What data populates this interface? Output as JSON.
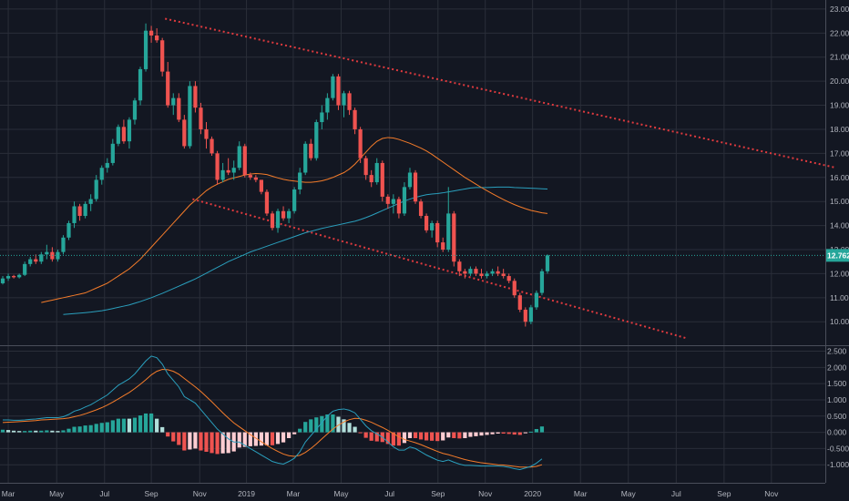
{
  "chart_data": [
    {
      "type": "candlestick",
      "panel": "price",
      "x_axis": {
        "tick_labels": [
          "Mar",
          "May",
          "Jul",
          "Sep",
          "Nov",
          "2019",
          "Mar",
          "May",
          "Jul",
          "Sep",
          "Nov",
          "2020",
          "Mar",
          "May",
          "Jul",
          "Sep",
          "Nov"
        ],
        "tick_weeks": [
          1.5,
          10.3,
          19.0,
          27.5,
          36.3,
          44.8,
          53.3,
          62.0,
          70.8,
          79.6,
          88.2,
          96.8,
          105.5,
          114.2,
          122.9,
          131.6,
          140.2
        ],
        "range_weeks": [
          0,
          150
        ]
      },
      "y_axis": {
        "tick_labels": [
          "23.000",
          "22.000",
          "21.000",
          "20.000",
          "19.000",
          "18.000",
          "17.000",
          "16.000",
          "15.000",
          "14.000",
          "13.000",
          "12.000",
          "11.000",
          "10.000"
        ],
        "range": [
          9.1,
          23.3
        ]
      },
      "last_price": {
        "label": "12.762",
        "value": 12.76,
        "color": "#26a69a"
      },
      "colors": {
        "up": "#26a69a",
        "down": "#ef5350",
        "ma_fast": "#f57c2a",
        "ma_slow": "#2a9fbd",
        "trendline": "#e03a3e"
      },
      "candles_ohlc": [
        [
          11.6,
          11.9,
          11.55,
          11.8
        ],
        [
          11.8,
          12.0,
          11.7,
          11.9
        ],
        [
          11.9,
          11.95,
          11.8,
          11.85
        ],
        [
          11.85,
          12.0,
          11.8,
          11.95
        ],
        [
          11.95,
          12.5,
          11.9,
          12.4
        ],
        [
          12.4,
          12.7,
          12.3,
          12.6
        ],
        [
          12.6,
          12.8,
          12.4,
          12.5
        ],
        [
          12.5,
          12.9,
          12.4,
          12.8
        ],
        [
          12.8,
          13.2,
          12.6,
          12.9
        ],
        [
          12.9,
          13.1,
          12.5,
          12.6
        ],
        [
          12.6,
          13.0,
          12.5,
          12.9
        ],
        [
          12.9,
          13.6,
          12.8,
          13.5
        ],
        [
          13.5,
          14.2,
          13.4,
          14.1
        ],
        [
          14.1,
          15.0,
          13.9,
          14.8
        ],
        [
          14.8,
          14.9,
          14.2,
          14.4
        ],
        [
          14.4,
          15.0,
          14.3,
          14.9
        ],
        [
          14.9,
          15.3,
          14.6,
          15.1
        ],
        [
          15.1,
          16.1,
          15.0,
          15.9
        ],
        [
          15.9,
          16.5,
          15.7,
          16.4
        ],
        [
          16.4,
          16.8,
          16.2,
          16.6
        ],
        [
          16.6,
          17.6,
          16.5,
          17.4
        ],
        [
          17.4,
          18.2,
          17.3,
          18.1
        ],
        [
          18.1,
          18.4,
          17.4,
          17.5
        ],
        [
          17.5,
          18.5,
          17.2,
          18.4
        ],
        [
          18.4,
          19.3,
          18.2,
          19.2
        ],
        [
          19.2,
          20.6,
          19.0,
          20.5
        ],
        [
          20.5,
          22.4,
          20.4,
          22.1
        ],
        [
          22.1,
          22.3,
          21.6,
          21.9
        ],
        [
          21.9,
          22.2,
          21.6,
          21.7
        ],
        [
          21.7,
          21.8,
          20.2,
          20.4
        ],
        [
          20.4,
          20.8,
          18.9,
          19.0
        ],
        [
          19.0,
          19.5,
          18.6,
          19.3
        ],
        [
          19.3,
          19.5,
          18.3,
          18.4
        ],
        [
          18.4,
          18.6,
          17.2,
          17.3
        ],
        [
          17.3,
          20.0,
          17.2,
          19.8
        ],
        [
          19.8,
          20.0,
          18.7,
          18.9
        ],
        [
          18.9,
          19.1,
          17.8,
          18.0
        ],
        [
          18.0,
          18.3,
          17.2,
          17.6
        ],
        [
          17.6,
          17.7,
          16.9,
          17.0
        ],
        [
          17.0,
          17.1,
          15.7,
          15.9
        ],
        [
          15.9,
          16.6,
          15.8,
          16.3
        ],
        [
          16.3,
          16.8,
          16.1,
          16.2
        ],
        [
          16.2,
          16.7,
          15.9,
          16.4
        ],
        [
          16.4,
          17.5,
          16.3,
          17.3
        ],
        [
          17.3,
          17.4,
          16.0,
          16.1
        ],
        [
          16.1,
          16.2,
          15.9,
          16.0
        ],
        [
          16.0,
          16.1,
          15.8,
          15.9
        ],
        [
          15.9,
          15.9,
          15.3,
          15.4
        ],
        [
          15.4,
          15.5,
          14.4,
          14.5
        ],
        [
          14.5,
          14.6,
          13.8,
          13.9
        ],
        [
          13.9,
          14.7,
          13.7,
          14.6
        ],
        [
          14.6,
          14.8,
          14.2,
          14.3
        ],
        [
          14.3,
          14.7,
          14.1,
          14.6
        ],
        [
          14.6,
          15.6,
          14.5,
          15.5
        ],
        [
          15.5,
          16.4,
          15.3,
          16.2
        ],
        [
          16.2,
          17.5,
          16.1,
          17.4
        ],
        [
          17.4,
          17.6,
          16.7,
          16.8
        ],
        [
          16.8,
          18.4,
          16.7,
          18.3
        ],
        [
          18.3,
          19.0,
          18.0,
          18.7
        ],
        [
          18.7,
          19.5,
          18.4,
          19.3
        ],
        [
          19.3,
          20.3,
          19.2,
          20.2
        ],
        [
          20.2,
          20.3,
          18.8,
          19.0
        ],
        [
          19.0,
          19.6,
          18.5,
          19.5
        ],
        [
          19.5,
          19.6,
          18.6,
          18.8
        ],
        [
          18.8,
          18.9,
          17.8,
          18.0
        ],
        [
          18.0,
          18.1,
          16.6,
          16.8
        ],
        [
          16.8,
          16.9,
          15.9,
          16.1
        ],
        [
          16.1,
          16.3,
          15.6,
          15.8
        ],
        [
          15.8,
          16.8,
          15.7,
          16.6
        ],
        [
          16.6,
          16.7,
          15.0,
          15.2
        ],
        [
          15.2,
          15.3,
          14.7,
          14.9
        ],
        [
          14.9,
          15.3,
          14.5,
          15.1
        ],
        [
          15.1,
          15.2,
          14.3,
          14.5
        ],
        [
          14.5,
          15.8,
          14.4,
          15.6
        ],
        [
          15.6,
          16.4,
          15.5,
          16.2
        ],
        [
          16.2,
          16.3,
          14.9,
          15.0
        ],
        [
          15.0,
          15.1,
          14.3,
          14.4
        ],
        [
          14.4,
          14.5,
          13.7,
          13.8
        ],
        [
          13.8,
          14.2,
          13.5,
          14.1
        ],
        [
          14.1,
          14.2,
          13.1,
          13.3
        ],
        [
          13.3,
          13.5,
          12.9,
          13.0
        ],
        [
          13.0,
          15.6,
          12.9,
          14.5
        ],
        [
          14.5,
          14.6,
          12.3,
          12.5
        ],
        [
          12.5,
          12.6,
          11.9,
          12.1
        ],
        [
          12.1,
          12.2,
          11.8,
          12.0
        ],
        [
          12.0,
          12.3,
          11.9,
          12.2
        ],
        [
          12.2,
          12.3,
          11.9,
          12.0
        ],
        [
          12.0,
          12.2,
          11.8,
          11.9
        ],
        [
          11.9,
          12.1,
          11.8,
          12.0
        ],
        [
          12.0,
          12.2,
          11.9,
          12.1
        ],
        [
          12.1,
          12.3,
          11.9,
          12.0
        ],
        [
          12.0,
          12.2,
          11.8,
          11.9
        ],
        [
          11.9,
          12.0,
          11.6,
          11.7
        ],
        [
          11.7,
          11.8,
          11.0,
          11.1
        ],
        [
          11.1,
          11.2,
          10.4,
          10.5
        ],
        [
          10.5,
          10.6,
          9.8,
          10.0
        ],
        [
          10.0,
          10.7,
          9.9,
          10.6
        ],
        [
          10.6,
          11.3,
          10.5,
          11.2
        ],
        [
          11.2,
          12.2,
          11.1,
          12.1
        ],
        [
          12.1,
          12.8,
          12.0,
          12.76
        ]
      ],
      "ma_fast_values": [
        10.8,
        10.85,
        10.9,
        10.95,
        11.0,
        11.05,
        11.1,
        11.15,
        11.2,
        11.3,
        11.4,
        11.5,
        11.6,
        11.75,
        11.9,
        12.05,
        12.2,
        12.4,
        12.6,
        12.85,
        13.1,
        13.35,
        13.6,
        13.85,
        14.1,
        14.35,
        14.6,
        14.85,
        15.05,
        15.25,
        15.45,
        15.6,
        15.72,
        15.82,
        15.92,
        15.98,
        16.04,
        16.1,
        16.14,
        16.16,
        16.15,
        16.12,
        16.05,
        15.98,
        15.92,
        15.88,
        15.85,
        15.82,
        15.8,
        15.8,
        15.82,
        15.86,
        15.92,
        16.0,
        16.1,
        16.2,
        16.35,
        16.55,
        16.8,
        17.05,
        17.3,
        17.5,
        17.62,
        17.66,
        17.64,
        17.58,
        17.5,
        17.42,
        17.32,
        17.22,
        17.1,
        16.96,
        16.8,
        16.64,
        16.48,
        16.32,
        16.16,
        16.0,
        15.86,
        15.72,
        15.58,
        15.45,
        15.32,
        15.2,
        15.08,
        14.97,
        14.87,
        14.78,
        14.7,
        14.63,
        14.58,
        14.53,
        14.5
      ],
      "ma_slow_values": [
        10.3,
        10.32,
        10.34,
        10.36,
        10.38,
        10.4,
        10.43,
        10.46,
        10.5,
        10.55,
        10.6,
        10.65,
        10.7,
        10.77,
        10.84,
        10.92,
        11.0,
        11.09,
        11.18,
        11.28,
        11.38,
        11.48,
        11.58,
        11.68,
        11.78,
        11.9,
        12.02,
        12.14,
        12.26,
        12.38,
        12.5,
        12.6,
        12.7,
        12.8,
        12.9,
        12.98,
        13.06,
        13.14,
        13.22,
        13.3,
        13.38,
        13.46,
        13.54,
        13.62,
        13.7,
        13.76,
        13.82,
        13.88,
        13.93,
        13.98,
        14.03,
        14.08,
        14.13,
        14.18,
        14.25,
        14.33,
        14.42,
        14.52,
        14.62,
        14.72,
        14.82,
        14.92,
        15.02,
        15.1,
        15.17,
        15.23,
        15.28,
        15.31,
        15.33,
        15.36,
        15.4,
        15.44,
        15.48,
        15.52,
        15.56,
        15.58,
        15.58,
        15.58,
        15.59,
        15.6,
        15.6,
        15.6,
        15.58,
        15.57,
        15.56,
        15.55,
        15.54,
        15.53,
        15.52
      ],
      "trendlines": [
        {
          "from": {
            "week": 30.0,
            "value": 22.6
          },
          "to": {
            "week": 152.0,
            "value": 16.4
          }
        },
        {
          "from": {
            "week": 35.0,
            "value": 15.1
          },
          "to": {
            "week": 125.0,
            "value": 9.3
          }
        }
      ]
    },
    {
      "type": "macd",
      "panel": "indicator",
      "y_axis": {
        "tick_labels": [
          "2.500",
          "2.000",
          "1.500",
          "1.000",
          "0.500",
          "0.000",
          "-0.500",
          "-1.000"
        ],
        "range": [
          -1.5,
          2.6
        ]
      },
      "colors": {
        "hist_pos_strong": "#26a69a",
        "hist_pos_weak": "#b2dfdb",
        "hist_neg_strong": "#ef5350",
        "hist_neg_weak": "#ffcdd2",
        "macd": "#2a9fbd",
        "signal": "#f57c2a"
      },
      "macd_values": [
        0.38,
        0.38,
        0.37,
        0.37,
        0.38,
        0.4,
        0.41,
        0.43,
        0.45,
        0.45,
        0.45,
        0.48,
        0.55,
        0.65,
        0.7,
        0.78,
        0.85,
        0.95,
        1.05,
        1.15,
        1.3,
        1.45,
        1.55,
        1.65,
        1.8,
        2.0,
        2.2,
        2.35,
        2.3,
        2.1,
        1.8,
        1.6,
        1.4,
        1.1,
        1.0,
        0.9,
        0.7,
        0.5,
        0.3,
        0.1,
        -0.05,
        -0.2,
        -0.3,
        -0.3,
        -0.4,
        -0.5,
        -0.6,
        -0.7,
        -0.8,
        -0.9,
        -0.95,
        -0.98,
        -0.9,
        -0.8,
        -0.6,
        -0.3,
        -0.1,
        0.1,
        0.3,
        0.5,
        0.65,
        0.7,
        0.72,
        0.68,
        0.6,
        0.4,
        0.2,
        0.05,
        -0.05,
        -0.15,
        -0.3,
        -0.45,
        -0.55,
        -0.55,
        -0.45,
        -0.5,
        -0.6,
        -0.7,
        -0.78,
        -0.86,
        -0.9,
        -0.85,
        -0.92,
        -0.98,
        -1.02,
        -1.02,
        -1.03,
        -1.04,
        -1.04,
        -1.04,
        -1.04,
        -1.05,
        -1.08,
        -1.12,
        -1.15,
        -1.1,
        -1.05,
        -0.95,
        -0.82
      ],
      "signal_values": [
        0.3,
        0.31,
        0.32,
        0.33,
        0.34,
        0.35,
        0.36,
        0.38,
        0.39,
        0.4,
        0.41,
        0.42,
        0.44,
        0.48,
        0.52,
        0.57,
        0.63,
        0.69,
        0.76,
        0.84,
        0.93,
        1.03,
        1.13,
        1.23,
        1.35,
        1.48,
        1.62,
        1.77,
        1.88,
        1.94,
        1.93,
        1.88,
        1.79,
        1.66,
        1.53,
        1.4,
        1.26,
        1.1,
        0.94,
        0.77,
        0.6,
        0.44,
        0.29,
        0.17,
        0.05,
        -0.07,
        -0.18,
        -0.29,
        -0.4,
        -0.5,
        -0.59,
        -0.67,
        -0.72,
        -0.74,
        -0.71,
        -0.62,
        -0.5,
        -0.36,
        -0.2,
        -0.05,
        0.1,
        0.22,
        0.32,
        0.39,
        0.43,
        0.42,
        0.37,
        0.31,
        0.23,
        0.15,
        0.06,
        -0.04,
        -0.14,
        -0.22,
        -0.27,
        -0.32,
        -0.38,
        -0.45,
        -0.52,
        -0.59,
        -0.65,
        -0.69,
        -0.74,
        -0.79,
        -0.84,
        -0.88,
        -0.91,
        -0.94,
        -0.96,
        -0.98,
        -1.0,
        -1.01,
        -1.03,
        -1.05,
        -1.07,
        -1.07,
        -1.07,
        -1.05,
        -1.0
      ]
    }
  ]
}
